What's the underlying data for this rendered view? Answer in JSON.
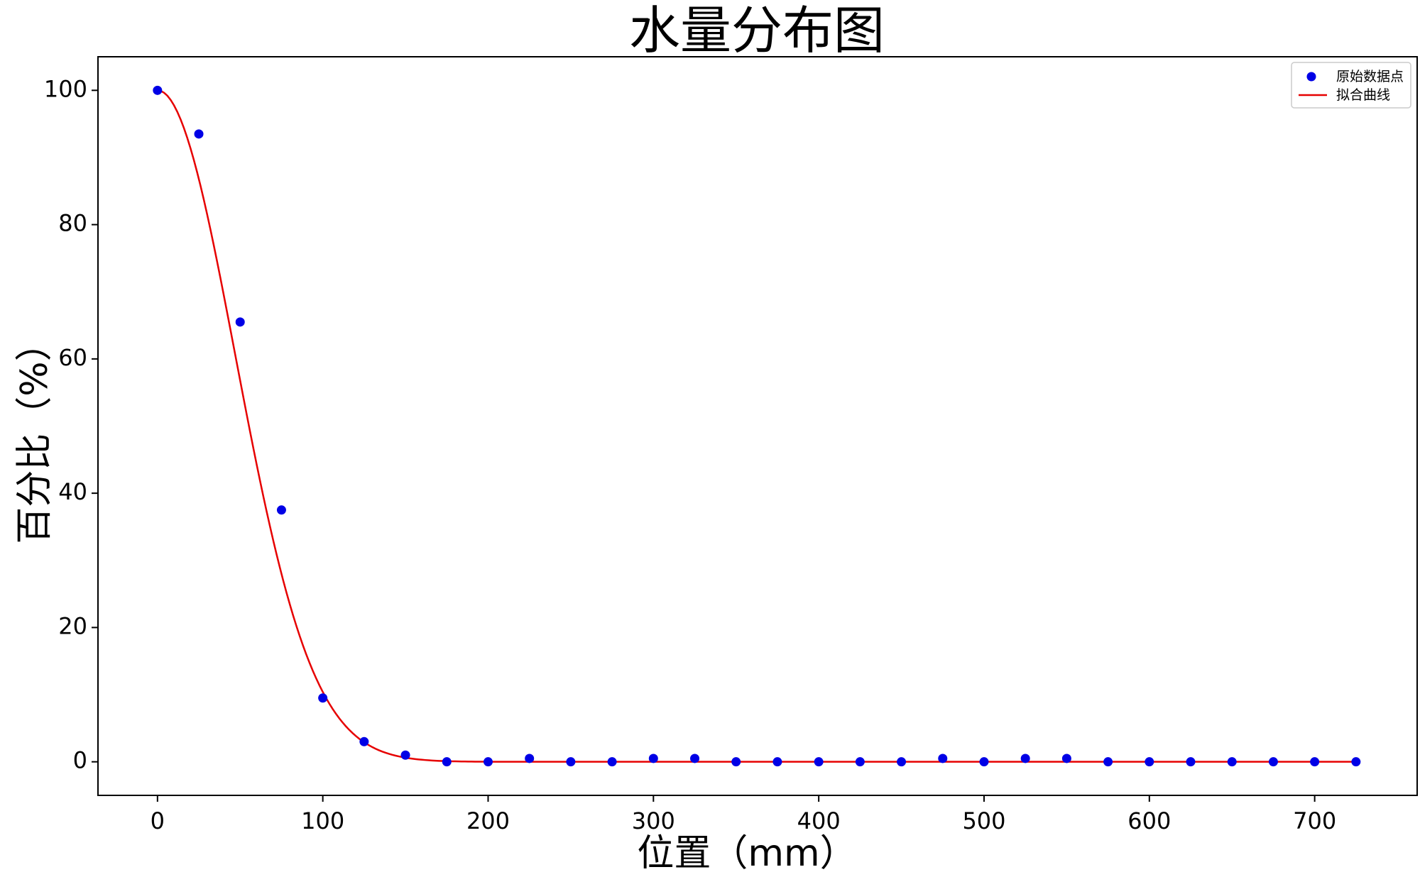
{
  "chart_data": {
    "type": "scatter",
    "title": "水量分布图",
    "xlabel": "位置（mm）",
    "ylabel": "百分比（%）",
    "xlim": [
      -36,
      762
    ],
    "ylim": [
      -5,
      105
    ],
    "xticks": [
      0,
      100,
      200,
      300,
      400,
      500,
      600,
      700
    ],
    "yticks": [
      0,
      20,
      40,
      60,
      80,
      100
    ],
    "grid": false,
    "legend_position": "top-right",
    "series": [
      {
        "name": "原始数据点",
        "kind": "scatter",
        "color": "#0000e6",
        "x": [
          0,
          25,
          50,
          75,
          100,
          125,
          150,
          175,
          200,
          225,
          250,
          275,
          300,
          325,
          350,
          375,
          400,
          425,
          450,
          475,
          500,
          525,
          550,
          575,
          600,
          625,
          650,
          675,
          700,
          725
        ],
        "y": [
          100,
          93.5,
          65.5,
          37.5,
          9.5,
          3,
          1,
          0,
          0,
          0.5,
          0,
          0,
          0.5,
          0.5,
          0,
          0,
          0,
          0,
          0,
          0.5,
          0,
          0.5,
          0.5,
          0,
          0,
          0,
          0,
          0,
          0,
          0
        ]
      },
      {
        "name": "拟合曲线",
        "kind": "line",
        "color": "#e60000",
        "curve": "gaussian",
        "amplitude": 100,
        "sigma": 47
      }
    ]
  }
}
